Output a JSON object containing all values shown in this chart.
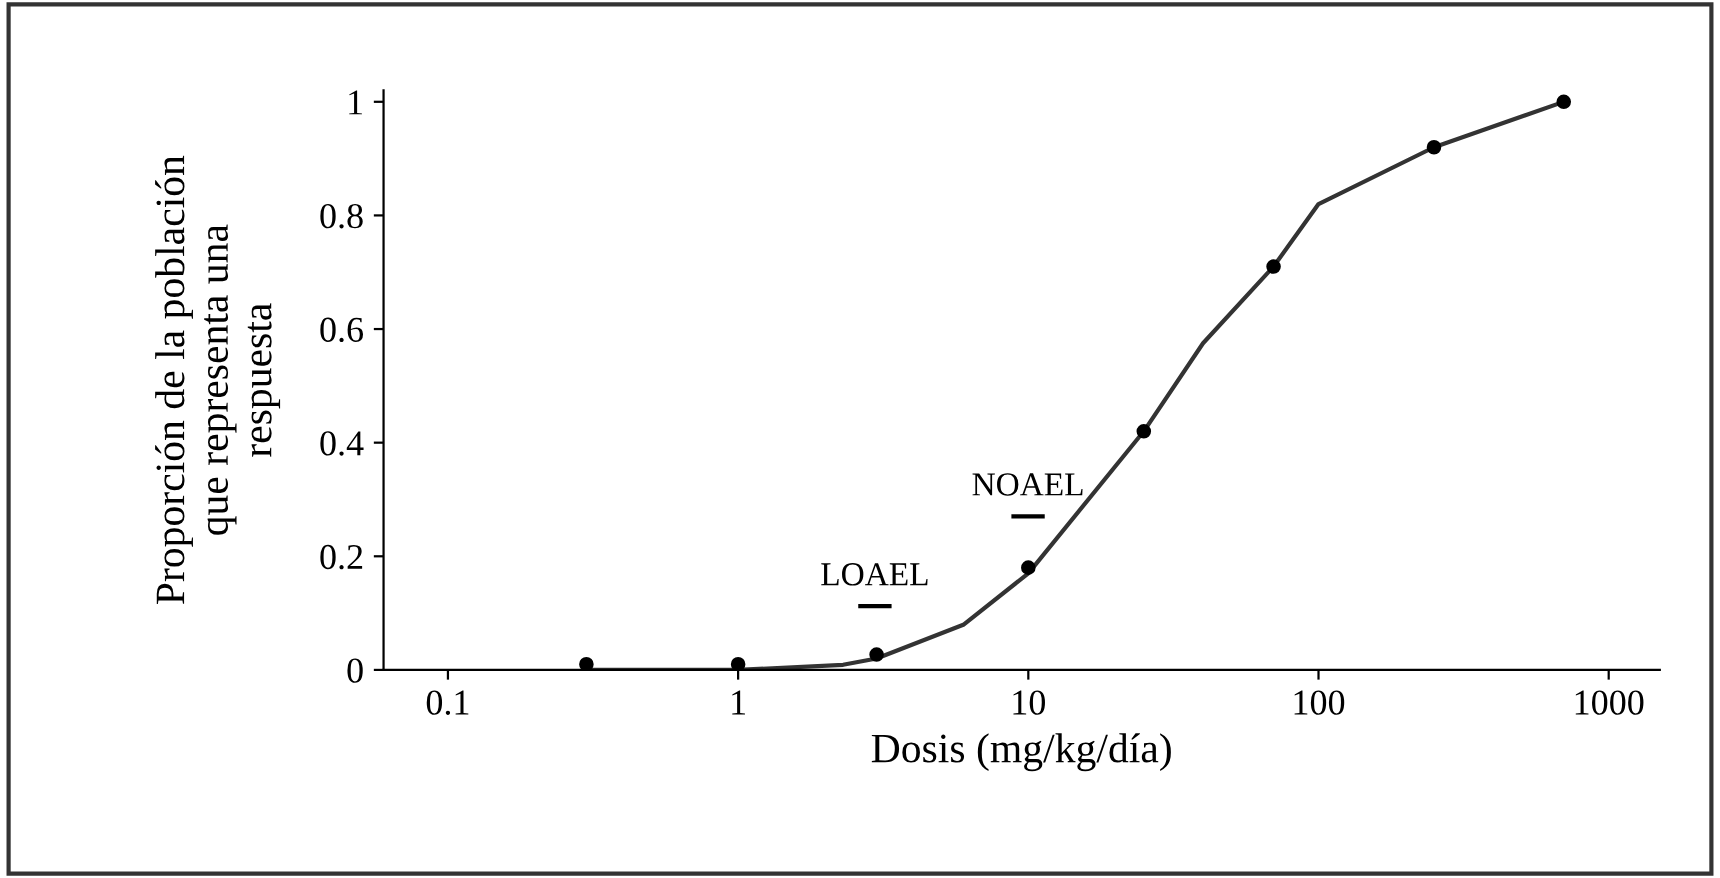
{
  "chart_data": {
    "type": "scatter",
    "xlabel": "Dosis (mg/kg/día)",
    "ylabel": "Proporción de la población\nque representa una\nrespuesta",
    "log": "x",
    "xlim": [
      0.06,
      1500
    ],
    "xticks": [
      0.1,
      1,
      10,
      100,
      1000
    ],
    "ylim": [
      0,
      1.02
    ],
    "yticks": [
      0,
      0.2,
      0.4,
      0.6,
      0.8,
      1
    ],
    "grid": false,
    "series": [
      {
        "marker": "circle",
        "color": "#000000",
        "x": [
          0.3,
          1,
          3,
          10,
          25,
          70,
          250,
          700
        ],
        "values": [
          0.01,
          0.01,
          0.027,
          0.18,
          0.42,
          0.71,
          0.92,
          1.0
        ]
      },
      {
        "type": "line",
        "color": "#333333",
        "line_style": "solid",
        "x": [
          0.3,
          1,
          2.3,
          3,
          6,
          10,
          25,
          40,
          70,
          100,
          250,
          700
        ],
        "values": [
          0.0,
          0.0,
          0.009,
          0.02,
          0.08,
          0.17,
          0.42,
          0.575,
          0.71,
          0.82,
          0.92,
          1.0
        ]
      }
    ],
    "annotations": [
      "LOAEL",
      "NOAEL"
    ]
  }
}
